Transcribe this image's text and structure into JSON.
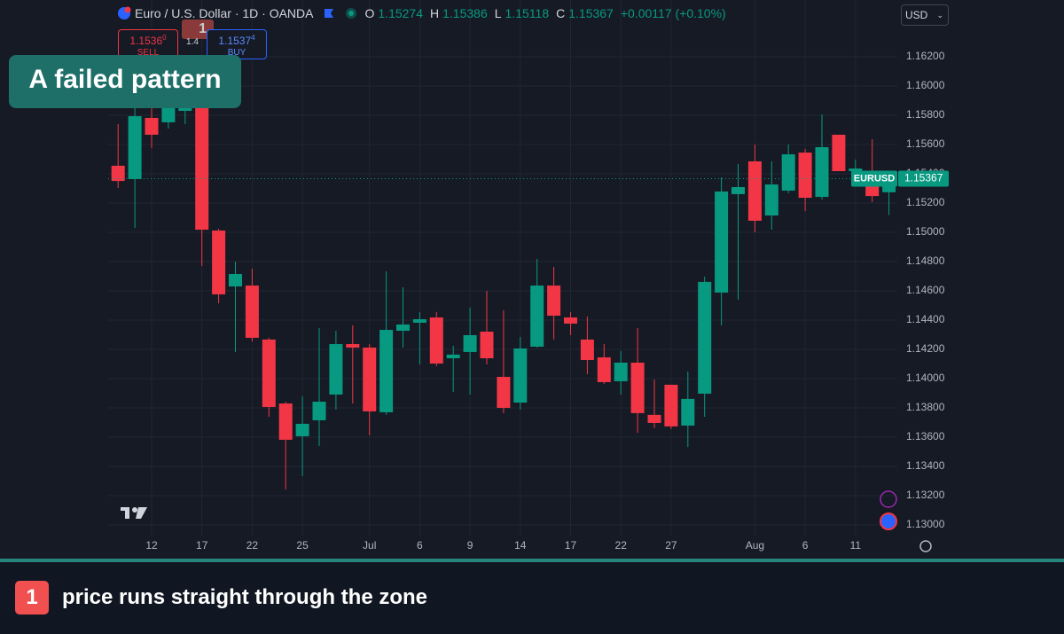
{
  "chart_data": {
    "type": "candlestick",
    "title": "Euro / U.S. Dollar · 1D · OANDA",
    "categories": [
      null,
      null,
      "12",
      null,
      null,
      "17",
      null,
      null,
      "22",
      null,
      null,
      "25",
      null,
      null,
      null,
      "Jul",
      null,
      null,
      "6",
      null,
      null,
      "9",
      null,
      null,
      "14",
      null,
      null,
      "17",
      null,
      null,
      "22",
      null,
      null,
      "27",
      null,
      null,
      null,
      null,
      "Aug",
      null,
      null,
      "6",
      null,
      null,
      "11",
      null,
      null
    ],
    "open": [
      1.15455,
      1.15364,
      1.15782,
      1.15752,
      1.1583,
      1.15921,
      1.15012,
      1.1463,
      1.14636,
      1.14267,
      1.1383,
      1.13606,
      1.13715,
      1.13891,
      1.14236,
      1.14212,
      1.1377,
      1.14327,
      1.14382,
      1.14418,
      1.14139,
      1.14182,
      1.14321,
      1.14012,
      1.13836,
      1.14218,
      1.14636,
      1.14418,
      1.14267,
      1.14145,
      1.13982,
      1.14109,
      1.13752,
      1.13958,
      1.13679,
      1.13897,
      1.14588,
      1.15261,
      1.15485,
      1.15115,
      1.15285,
      1.15545,
      1.15242,
      1.15667,
      1.15418,
      1.15406,
      1.15274
    ],
    "high": [
      1.15739,
      1.15879,
      1.15848,
      1.15982,
      1.15982,
      1.15982,
      1.15024,
      1.148,
      1.14751,
      1.14279,
      1.13842,
      1.13879,
      1.14345,
      1.14327,
      1.14364,
      1.14236,
      1.14733,
      1.14624,
      1.14455,
      1.14455,
      1.14224,
      1.14485,
      1.146,
      1.14467,
      1.14285,
      1.14818,
      1.14764,
      1.14455,
      1.14424,
      1.14236,
      1.14188,
      1.14345,
      1.13994,
      1.13958,
      1.14048,
      1.14697,
      1.15376,
      1.15467,
      1.156,
      1.15485,
      1.156,
      1.1557,
      1.15806,
      1.15667,
      1.15497,
      1.15636,
      1.15386
    ],
    "low": [
      1.15303,
      1.1503,
      1.15576,
      1.15709,
      1.15739,
      1.1477,
      1.14515,
      1.14182,
      1.14254,
      1.13739,
      1.13242,
      1.13333,
      1.13539,
      1.13788,
      1.1383,
      1.13612,
      1.13752,
      1.14212,
      1.14097,
      1.14085,
      1.13909,
      1.13891,
      1.14097,
      1.13764,
      1.13788,
      1.14212,
      1.14267,
      1.14297,
      1.1403,
      1.13964,
      1.13891,
      1.1363,
      1.13661,
      1.13655,
      1.13533,
      1.13739,
      1.14364,
      1.14539,
      1.15,
      1.15018,
      1.15267,
      1.15145,
      1.15224,
      1.15418,
      1.15376,
      1.15206,
      1.15118
    ],
    "close": [
      1.15351,
      1.15794,
      1.15667,
      1.15861,
      1.15891,
      1.15018,
      1.14576,
      1.14715,
      1.14279,
      1.13806,
      1.13582,
      1.13691,
      1.13842,
      1.14236,
      1.14212,
      1.13776,
      1.14333,
      1.1437,
      1.14406,
      1.14103,
      1.14164,
      1.14297,
      1.14139,
      1.138,
      1.14206,
      1.14636,
      1.1443,
      1.14376,
      1.14127,
      1.13976,
      1.14109,
      1.13764,
      1.13697,
      1.13673,
      1.13861,
      1.14661,
      1.15279,
      1.15309,
      1.15079,
      1.15327,
      1.15533,
      1.15236,
      1.15582,
      1.15418,
      1.15436,
      1.15248,
      1.15367
    ],
    "up_color": "#089981",
    "down_color": "#f23645",
    "ylim": [
      1.12927,
      1.16588
    ],
    "yticks": [
      {
        "value": 1.13,
        "label": "1.13000"
      },
      {
        "value": 1.132,
        "label": "1.13200"
      },
      {
        "value": 1.134,
        "label": "1.13400"
      },
      {
        "value": 1.136,
        "label": "1.13600"
      },
      {
        "value": 1.138,
        "label": "1.13800"
      },
      {
        "value": 1.14,
        "label": "1.14000"
      },
      {
        "value": 1.142,
        "label": "1.14200"
      },
      {
        "value": 1.144,
        "label": "1.14400"
      },
      {
        "value": 1.146,
        "label": "1.14600"
      },
      {
        "value": 1.148,
        "label": "1.14800"
      },
      {
        "value": 1.15,
        "label": "1.15000"
      },
      {
        "value": 1.152,
        "label": "1.15200"
      },
      {
        "value": 1.154,
        "label": "1.15400"
      },
      {
        "value": 1.156,
        "label": "1.15600"
      },
      {
        "value": 1.158,
        "label": "1.15800"
      },
      {
        "value": 1.16,
        "label": "1.16000"
      },
      {
        "value": 1.162,
        "label": "1.16200"
      }
    ],
    "grid": true,
    "symbol": "EURUSD",
    "ohlc_labels": [
      "O",
      "H",
      "L",
      "C"
    ],
    "change": "+0.00117 (+0.10%)"
  },
  "trade_panel": {
    "sell_price": "1.1536",
    "sell_price_sup": "0",
    "sell_label": "SELL",
    "spread": "1.4",
    "buy_price": "1.1537",
    "buy_price_sup": "4",
    "buy_label": "BUY"
  },
  "currency": "USD",
  "annotations": {
    "banner": "A failed pattern",
    "marker": "1",
    "footnote_number": "1",
    "footnote_text": "price runs straight through the zone"
  }
}
